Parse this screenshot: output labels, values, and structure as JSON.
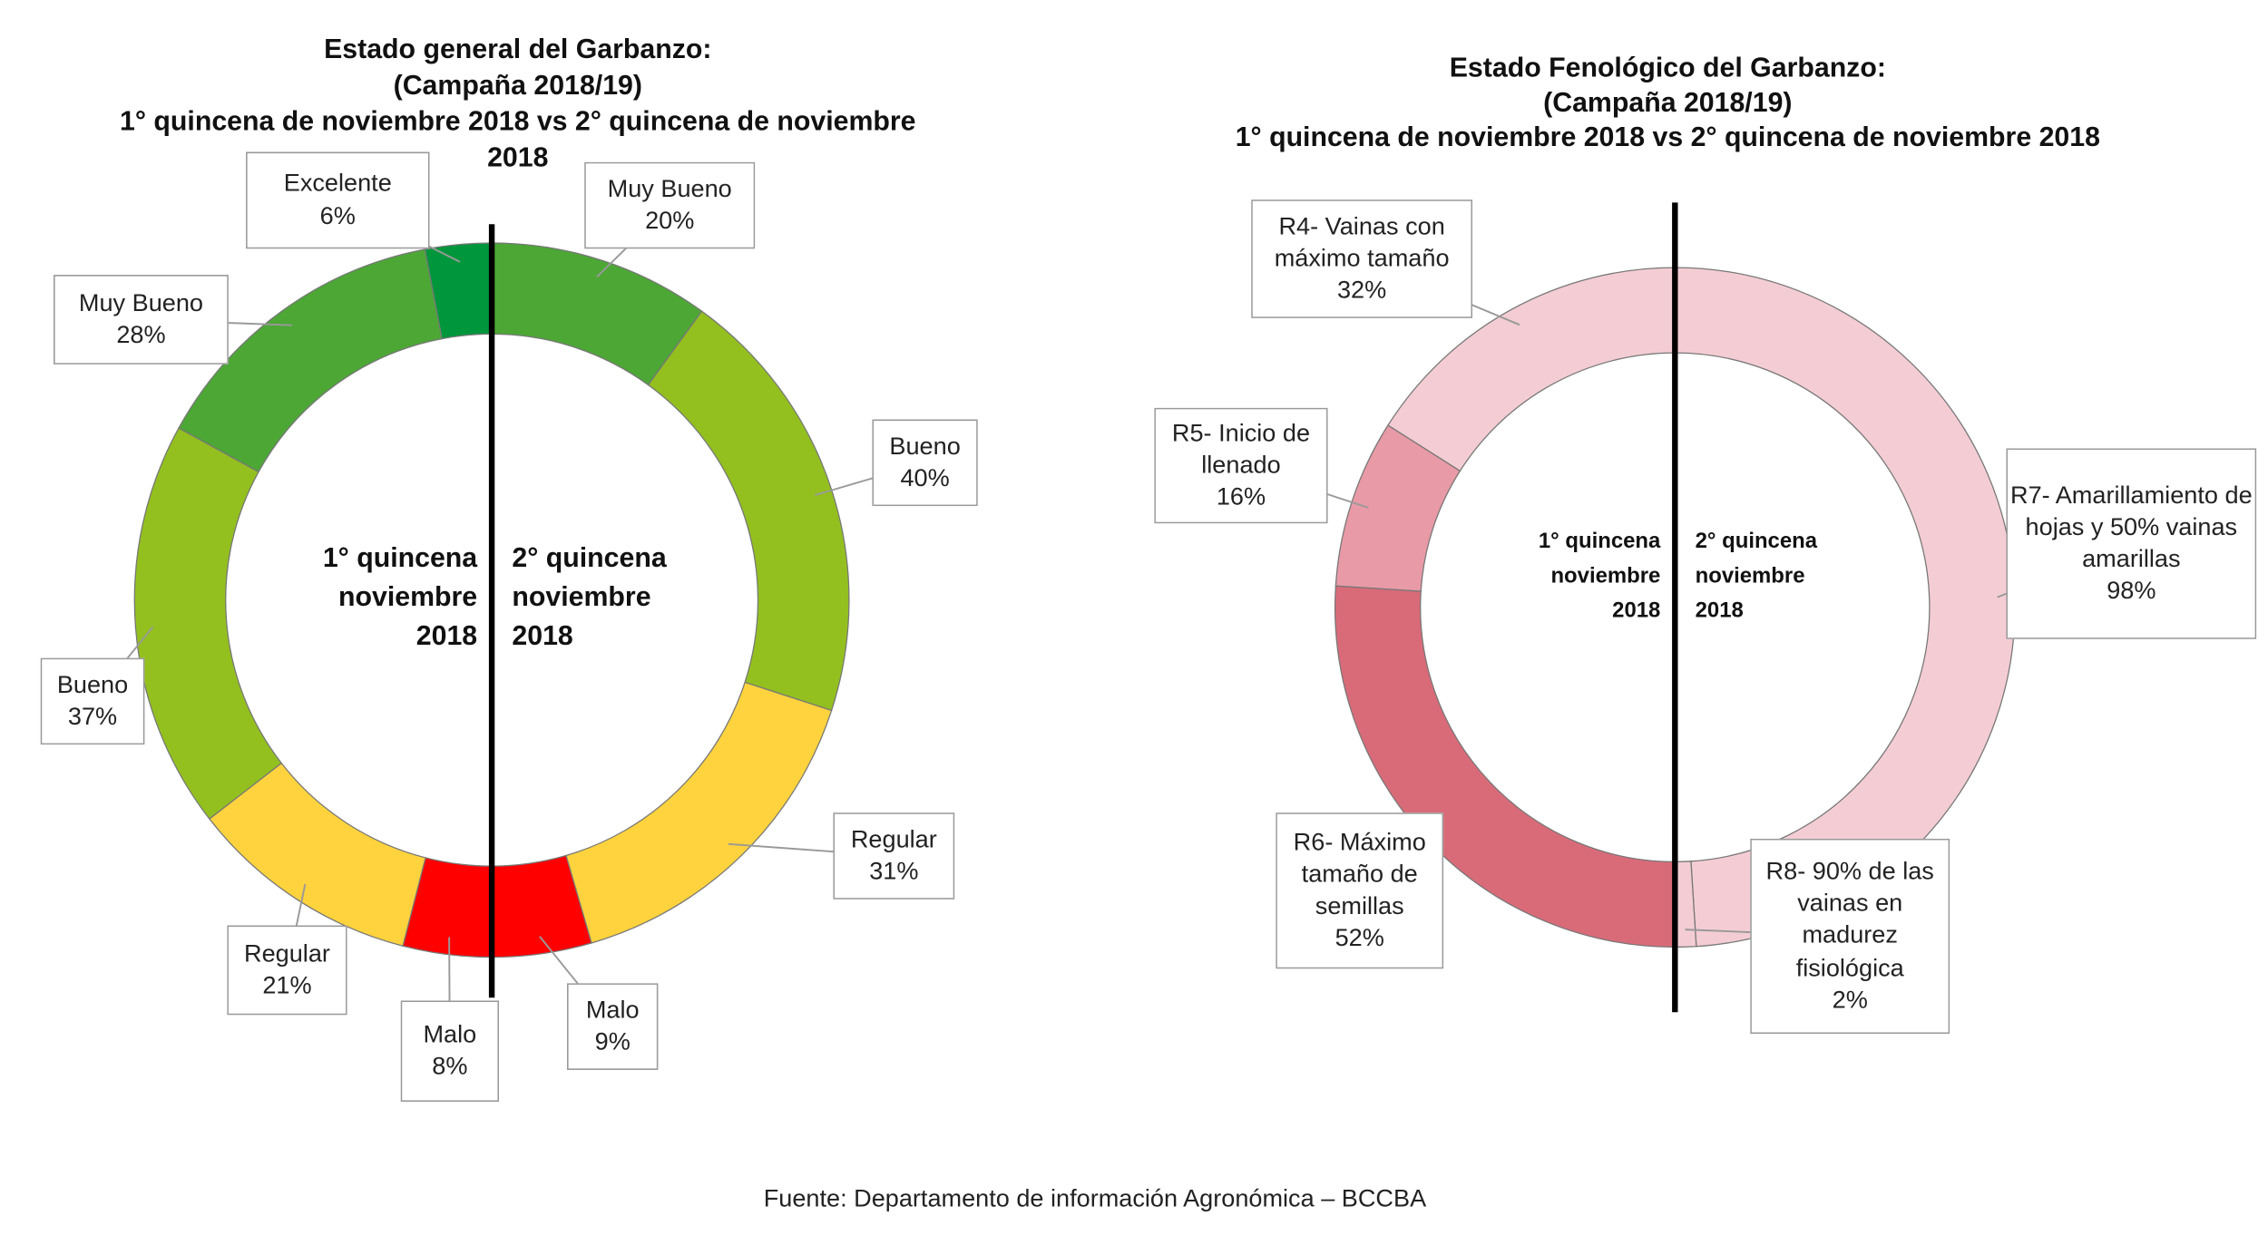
{
  "chart_data": [
    {
      "type": "donut",
      "title": [
        "Estado general del Garbanzo:",
        "(Campaña 2018/19)",
        "1° quincena de noviembre 2018 vs 2° quincena de noviembre",
        "2018"
      ],
      "series": [
        {
          "name": "1° quincena noviembre 2018",
          "categories": [
            "Excelente",
            "Muy Bueno",
            "Bueno",
            "Regular",
            "Malo"
          ],
          "values": [
            6,
            28,
            37,
            21,
            8
          ],
          "value_labels": [
            "6%",
            "28%",
            "37%",
            "21%",
            "8%"
          ],
          "colors": [
            "#00963c",
            "#4ca735",
            "#93c01f",
            "#ffd33d",
            "#ff0000"
          ]
        },
        {
          "name": "2° quincena noviembre 2018",
          "categories": [
            "Muy Bueno",
            "Bueno",
            "Regular",
            "Malo"
          ],
          "values": [
            20,
            40,
            31,
            9
          ],
          "value_labels": [
            "20%",
            "40%",
            "31%",
            "9%"
          ],
          "colors": [
            "#4ca735",
            "#93c01f",
            "#ffd33d",
            "#ff0000"
          ]
        }
      ]
    },
    {
      "type": "donut",
      "title": [
        "Estado Fenológico del Garbanzo:",
        "(Campaña 2018/19)",
        "1° quincena de noviembre 2018 vs 2° quincena de noviembre 2018"
      ],
      "series": [
        {
          "name": "1° quincena noviembre 2018",
          "categories": [
            "R4- Vainas con máximo tamaño",
            "R5- Inicio de llenado",
            "R6- Máximo tamaño de semillas"
          ],
          "values": [
            32,
            16,
            52
          ],
          "value_labels": [
            "32%",
            "16%",
            "52%"
          ],
          "colors": [
            "#f3cdd3",
            "#e89aa6",
            "#d96b79"
          ]
        },
        {
          "name": "2° quincena noviembre 2018",
          "categories": [
            "R7- Amarillamiento de hojas y 50% vainas amarillas",
            "R8- 90% de las vainas en madurez fisiológica"
          ],
          "values": [
            98,
            2
          ],
          "value_labels": [
            "98%",
            "2%"
          ],
          "colors": [
            "#f4cdd4",
            "#f4cdd4"
          ]
        }
      ]
    }
  ],
  "source": "Fuente: Departamento de información Agronómica – BCCBA"
}
